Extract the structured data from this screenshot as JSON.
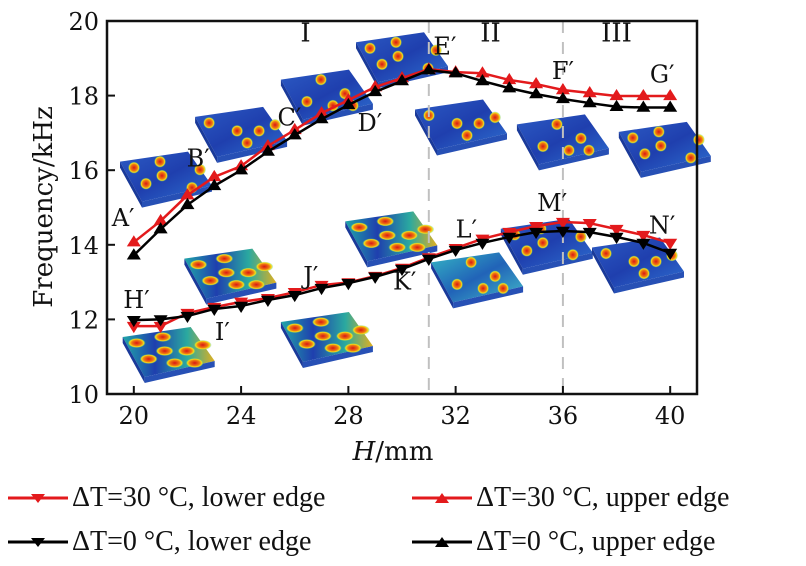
{
  "chart_data": {
    "type": "line",
    "title": "",
    "xlabel": "H/mm",
    "xlabel_italic": "H",
    "xlabel_unit": "/mm",
    "ylabel": "Frequency/kHz",
    "xlim": [
      19,
      41
    ],
    "ylim": [
      10,
      20
    ],
    "xticks": [
      20,
      24,
      28,
      32,
      36,
      40
    ],
    "yticks": [
      10,
      12,
      14,
      16,
      18,
      20
    ],
    "grid": false,
    "legend_position": "bottom",
    "x": [
      20,
      21,
      22,
      23,
      24,
      25,
      26,
      27,
      28,
      29,
      30,
      31,
      32,
      33,
      34,
      35,
      36,
      37,
      38,
      39,
      40
    ],
    "series": [
      {
        "name": "ΔT=30 °C, lower edge",
        "delta": "ΔT",
        "value_text": "=30 °C, lower edge",
        "color": "#e31a1c",
        "marker": "triangle-down",
        "values": [
          11.82,
          11.82,
          12.17,
          12.33,
          12.47,
          12.57,
          12.73,
          12.92,
          12.99,
          13.16,
          13.38,
          13.66,
          13.91,
          14.16,
          14.34,
          14.5,
          14.61,
          14.58,
          14.42,
          14.26,
          14.05
        ]
      },
      {
        "name": "ΔT=30 °C, upper edge",
        "delta": "ΔT",
        "value_text": "=30 °C, upper edge",
        "color": "#e31a1c",
        "marker": "triangle-up",
        "values": [
          14.07,
          14.64,
          15.33,
          15.82,
          16.11,
          16.65,
          17.08,
          17.53,
          17.88,
          18.23,
          18.47,
          18.71,
          18.63,
          18.6,
          18.42,
          18.31,
          18.15,
          18.07,
          17.99,
          17.99,
          17.99
        ]
      },
      {
        "name": "ΔT=0 °C, lower edge",
        "delta": "ΔT",
        "value_text": "=0 °C, lower edge",
        "color": "#000000",
        "marker": "triangle-down",
        "values": [
          11.98,
          12.0,
          12.09,
          12.28,
          12.36,
          12.52,
          12.65,
          12.84,
          12.97,
          13.14,
          13.35,
          13.62,
          13.86,
          14.05,
          14.21,
          14.34,
          14.37,
          14.34,
          14.21,
          14.05,
          13.78
        ]
      },
      {
        "name": "ΔT=0 °C, upper edge",
        "delta": "ΔT",
        "value_text": "=0 °C, upper edge",
        "color": "#000000",
        "marker": "triangle-up",
        "values": [
          13.72,
          14.42,
          15.07,
          15.58,
          16.0,
          16.5,
          16.94,
          17.37,
          17.75,
          18.1,
          18.39,
          18.68,
          18.6,
          18.39,
          18.2,
          18.04,
          17.91,
          17.8,
          17.7,
          17.68,
          17.68
        ]
      }
    ],
    "vlines": [
      31,
      36
    ],
    "regions": [
      {
        "label": "I",
        "x": 26.4,
        "y": 19.45
      },
      {
        "label": "II",
        "x": 33.3,
        "y": 19.45
      },
      {
        "label": "III",
        "x": 38.0,
        "y": 19.45
      }
    ],
    "annotations": [
      {
        "label": "A′",
        "x": 19.6,
        "y": 14.5
      },
      {
        "label": "B′",
        "x": 22.4,
        "y": 16.1
      },
      {
        "label": "C′",
        "x": 25.8,
        "y": 17.2
      },
      {
        "label": "D′",
        "x": 28.8,
        "y": 17.05
      },
      {
        "label": "E′",
        "x": 31.6,
        "y": 19.1
      },
      {
        "label": "F′",
        "x": 36.0,
        "y": 18.45
      },
      {
        "label": "G′",
        "x": 39.7,
        "y": 18.35
      },
      {
        "label": "H′",
        "x": 20.1,
        "y": 12.3
      },
      {
        "label": "I′",
        "x": 23.3,
        "y": 11.45
      },
      {
        "label": "J′",
        "x": 26.6,
        "y": 12.95
      },
      {
        "label": "K′",
        "x": 30.1,
        "y": 12.8
      },
      {
        "label": "L′",
        "x": 32.4,
        "y": 14.2
      },
      {
        "label": "M′",
        "x": 35.6,
        "y": 14.9
      },
      {
        "label": "N′",
        "x": 39.7,
        "y": 14.3
      }
    ],
    "mode_shape_insets": [
      {
        "name": "mode-A",
        "x": 21.2,
        "y": 15.8,
        "palette": "upper"
      },
      {
        "name": "mode-B",
        "x": 24.0,
        "y": 17.0,
        "palette": "upper"
      },
      {
        "name": "mode-C",
        "x": 27.2,
        "y": 18.0,
        "palette": "upper"
      },
      {
        "name": "mode-D",
        "x": 30.0,
        "y": 19.0,
        "palette": "upper"
      },
      {
        "name": "mode-E",
        "x": 32.2,
        "y": 17.2,
        "palette": "upper"
      },
      {
        "name": "mode-F",
        "x": 36.0,
        "y": 16.8,
        "palette": "upper"
      },
      {
        "name": "mode-G",
        "x": 39.8,
        "y": 16.6,
        "palette": "upper"
      },
      {
        "name": "mode-H",
        "x": 21.3,
        "y": 11.1,
        "palette": "lower"
      },
      {
        "name": "mode-I",
        "x": 23.6,
        "y": 13.2,
        "palette": "lower"
      },
      {
        "name": "mode-J",
        "x": 27.2,
        "y": 11.5,
        "palette": "lower"
      },
      {
        "name": "mode-K",
        "x": 29.6,
        "y": 14.2,
        "palette": "lower"
      },
      {
        "name": "mode-L",
        "x": 32.8,
        "y": 13.1,
        "palette": "lower-cyan"
      },
      {
        "name": "mode-M",
        "x": 35.4,
        "y": 14.0,
        "palette": "upper"
      },
      {
        "name": "mode-N",
        "x": 38.8,
        "y": 13.5,
        "palette": "upper"
      }
    ]
  },
  "colors": {
    "red": "#e31a1c",
    "black": "#000000",
    "dash": "#c0c0c0"
  }
}
